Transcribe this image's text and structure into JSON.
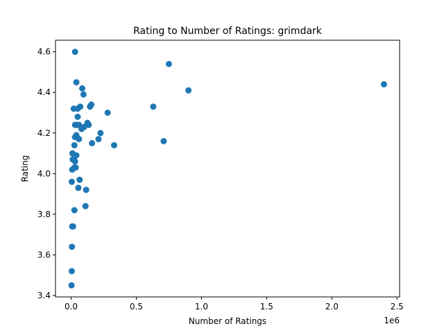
{
  "chart_data": {
    "type": "scatter",
    "title": "Rating to Number of Ratings: grimdark",
    "xlabel": "Number of Ratings",
    "ylabel": "Rating",
    "x_offset_label": "1e6",
    "xlim": [
      -0.12,
      2.52
    ],
    "ylim": [
      3.393,
      4.657
    ],
    "x_ticks": [
      0.0,
      0.5,
      1.0,
      1.5,
      2.0,
      2.5
    ],
    "x_tick_labels": [
      "0.0",
      "0.5",
      "1.0",
      "1.5",
      "2.0",
      "2.5"
    ],
    "y_ticks": [
      3.4,
      3.6,
      3.8,
      4.0,
      4.2,
      4.4,
      4.6
    ],
    "y_tick_labels": [
      "3.4",
      "3.6",
      "3.8",
      "4.0",
      "4.2",
      "4.4",
      "4.6"
    ],
    "grid": false,
    "marker_color": "#1f77b4",
    "x_units": "millions of ratings (axis scaled by 1e6)",
    "points": [
      [
        0.003,
        3.45
      ],
      [
        0.005,
        3.52
      ],
      [
        0.006,
        3.64
      ],
      [
        0.008,
        3.74
      ],
      [
        0.015,
        3.74
      ],
      [
        0.025,
        3.82
      ],
      [
        0.005,
        3.96
      ],
      [
        0.008,
        4.02
      ],
      [
        0.01,
        4.1
      ],
      [
        0.012,
        4.07
      ],
      [
        0.02,
        4.07
      ],
      [
        0.03,
        4.06
      ],
      [
        0.025,
        4.14
      ],
      [
        0.03,
        4.18
      ],
      [
        0.025,
        4.03
      ],
      [
        0.035,
        4.03
      ],
      [
        0.04,
        4.09
      ],
      [
        0.04,
        4.19
      ],
      [
        0.03,
        4.24
      ],
      [
        0.045,
        4.24
      ],
      [
        0.05,
        4.28
      ],
      [
        0.05,
        4.32
      ],
      [
        0.02,
        4.32
      ],
      [
        0.03,
        4.6
      ],
      [
        0.04,
        4.45
      ],
      [
        0.055,
        3.93
      ],
      [
        0.065,
        3.97
      ],
      [
        0.06,
        4.17
      ],
      [
        0.06,
        4.24
      ],
      [
        0.07,
        4.33
      ],
      [
        0.08,
        4.22
      ],
      [
        0.085,
        4.42
      ],
      [
        0.095,
        4.39
      ],
      [
        0.1,
        4.23
      ],
      [
        0.11,
        3.84
      ],
      [
        0.115,
        3.92
      ],
      [
        0.125,
        4.25
      ],
      [
        0.135,
        4.24
      ],
      [
        0.145,
        4.33
      ],
      [
        0.155,
        4.34
      ],
      [
        0.16,
        4.15
      ],
      [
        0.21,
        4.17
      ],
      [
        0.225,
        4.2
      ],
      [
        0.28,
        4.3
      ],
      [
        0.33,
        4.14
      ],
      [
        0.63,
        4.33
      ],
      [
        0.71,
        4.16
      ],
      [
        0.75,
        4.54
      ],
      [
        0.9,
        4.41
      ],
      [
        2.4,
        4.44
      ]
    ]
  }
}
